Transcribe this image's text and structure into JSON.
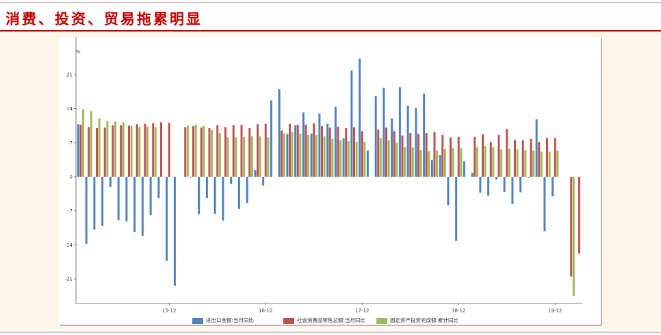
{
  "title": "消费、投资、贸易拖累明显",
  "chart_data": {
    "type": "bar",
    "unit_label": "%",
    "ylim": [
      -26,
      29
    ],
    "yticks": [
      -21,
      -14,
      -7,
      0,
      7,
      14,
      21
    ],
    "x_tick_labels": [
      "15-12",
      "16-12",
      "17-12",
      "18-12",
      "19-12"
    ],
    "legend_position": "bottom",
    "grid": false,
    "categories": [
      "15-01",
      "15-02",
      "15-03",
      "15-04",
      "15-05",
      "15-06",
      "15-07",
      "15-08",
      "15-09",
      "15-10",
      "15-11",
      "15-12",
      "16-01",
      "16-02",
      "16-03",
      "16-04",
      "16-05",
      "16-06",
      "16-07",
      "16-08",
      "16-09",
      "16-10",
      "16-11",
      "16-12",
      "17-01",
      "17-02",
      "17-03",
      "17-04",
      "17-05",
      "17-06",
      "17-07",
      "17-08",
      "17-09",
      "17-10",
      "17-11",
      "17-12",
      "18-01",
      "18-02",
      "18-03",
      "18-04",
      "18-05",
      "18-06",
      "18-07",
      "18-08",
      "18-09",
      "18-10",
      "18-11",
      "18-12",
      "19-01",
      "19-02",
      "19-03",
      "19-04",
      "19-05",
      "19-06",
      "19-07",
      "19-08",
      "19-09",
      "19-10",
      "19-11",
      "19-12",
      "20-01",
      "20-02",
      "20-03"
    ],
    "series": [
      {
        "name": "进出口金额:当月同比",
        "color": "#4f81bd",
        "values": [
          10.8,
          -13.8,
          -10.9,
          -10.1,
          -2.1,
          -8.9,
          -9.2,
          -11.4,
          -12.2,
          -7.9,
          -4.4,
          -17.3,
          -22.4,
          null,
          -0.2,
          -7.7,
          -4.4,
          -7.6,
          -9.0,
          -1.5,
          -6.6,
          -5.4,
          1.4,
          -1.8,
          15.7,
          18.0,
          8.8,
          10.6,
          13.2,
          8.9,
          13.0,
          10.9,
          14.4,
          7.9,
          21.9,
          24.3,
          5.4,
          16.6,
          18.3,
          12.0,
          18.4,
          14.6,
          14.1,
          17.1,
          3.4,
          4.5,
          -5.9,
          -13.2,
          3.2,
          0.8,
          -3.3,
          -3.9,
          -0.6,
          -3.1,
          -5.6,
          -3.2,
          -0.2,
          11.8,
          -11.2,
          -4.0,
          null,
          null,
          null
        ]
      },
      {
        "name": "社会消费品零售总额:当月同比",
        "color": "#c0504d",
        "values": [
          10.7,
          10.2,
          10.0,
          10.1,
          10.6,
          10.6,
          10.5,
          10.8,
          10.9,
          11.0,
          11.2,
          11.1,
          null,
          10.2,
          10.4,
          10.1,
          10.0,
          10.6,
          10.2,
          10.6,
          10.7,
          10.0,
          10.8,
          10.9,
          null,
          9.5,
          10.9,
          10.7,
          10.7,
          11.0,
          10.4,
          10.1,
          10.3,
          10.0,
          10.2,
          9.4,
          null,
          9.7,
          10.1,
          9.4,
          8.5,
          9.0,
          8.8,
          9.0,
          9.2,
          8.6,
          8.1,
          8.2,
          null,
          8.2,
          8.7,
          7.2,
          8.6,
          9.8,
          7.6,
          7.5,
          7.8,
          7.2,
          8.0,
          8.0,
          null,
          -20.5,
          -15.8
        ]
      },
      {
        "name": "固定资产投资完成额:累计同比",
        "color": "#9bbb59",
        "values": [
          13.9,
          13.5,
          12.0,
          11.4,
          11.4,
          11.2,
          10.5,
          10.2,
          10.3,
          10.2,
          null,
          null,
          null,
          10.5,
          10.7,
          10.5,
          9.6,
          9.0,
          8.1,
          8.1,
          8.2,
          8.3,
          8.3,
          8.1,
          null,
          8.9,
          9.2,
          8.9,
          8.6,
          8.6,
          8.3,
          7.8,
          7.5,
          7.3,
          7.2,
          7.2,
          null,
          7.9,
          7.5,
          7.0,
          6.1,
          6.0,
          5.5,
          5.3,
          5.4,
          5.7,
          5.9,
          5.9,
          null,
          6.1,
          6.3,
          6.1,
          5.6,
          5.8,
          5.7,
          5.5,
          5.4,
          5.2,
          5.2,
          5.4,
          null,
          -24.5,
          null
        ]
      }
    ]
  }
}
